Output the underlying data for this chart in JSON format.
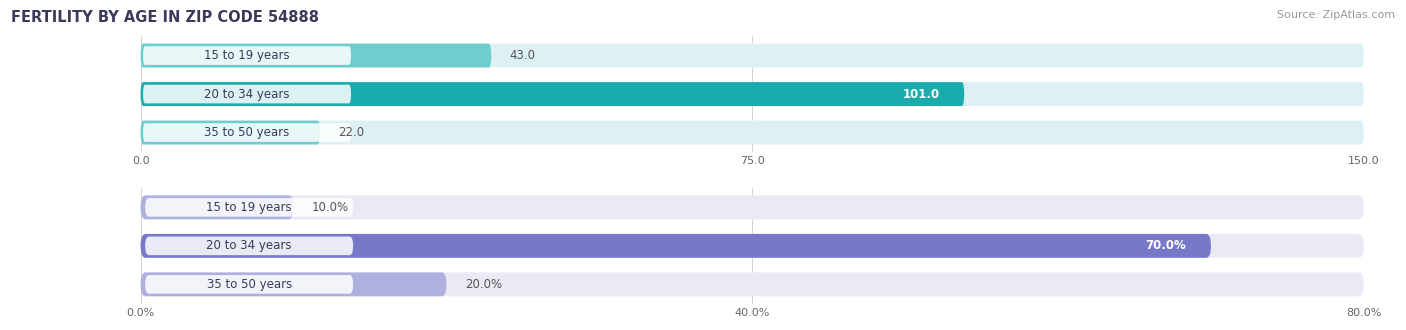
{
  "title": "FERTILITY BY AGE IN ZIP CODE 54888",
  "source": "Source: ZipAtlas.com",
  "top_chart": {
    "categories": [
      "15 to 19 years",
      "20 to 34 years",
      "35 to 50 years"
    ],
    "values": [
      43.0,
      101.0,
      22.0
    ],
    "xlim": [
      0,
      150.0
    ],
    "xticks": [
      0.0,
      75.0,
      150.0
    ],
    "xtick_labels": [
      "0.0",
      "75.0",
      "150.0"
    ],
    "bar_colors": [
      "#6ecece",
      "#1aacac",
      "#6ecece"
    ],
    "bar_bg_color": "#ddf0f4",
    "label_inside_color": "#ffffff",
    "label_outside_color": "#555555",
    "inside_value": 101.0
  },
  "bottom_chart": {
    "categories": [
      "15 to 19 years",
      "20 to 34 years",
      "35 to 50 years"
    ],
    "values": [
      10.0,
      70.0,
      20.0
    ],
    "xlim": [
      0,
      80.0
    ],
    "xticks": [
      0.0,
      40.0,
      80.0
    ],
    "xtick_labels": [
      "0.0%",
      "40.0%",
      "80.0%"
    ],
    "bar_colors": [
      "#b0b0e0",
      "#7878c8",
      "#b0b0e0"
    ],
    "bar_bg_color": "#eaeaf5",
    "label_inside_color": "#ffffff",
    "label_outside_color": "#555555",
    "inside_value": 70.0,
    "value_suffix": "%"
  },
  "title_color": "#3a3a5a",
  "source_color": "#999999",
  "title_fontsize": 10.5,
  "source_fontsize": 8,
  "category_fontsize": 8.5,
  "value_fontsize": 8.5,
  "tick_fontsize": 8,
  "bg_color": "#ffffff",
  "cat_label_bg": "#ffffff",
  "cat_label_color": "#3a3a5a"
}
